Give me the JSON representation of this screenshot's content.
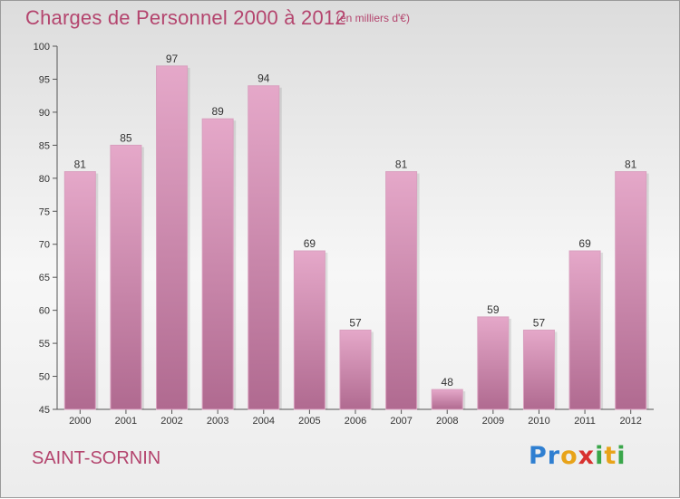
{
  "title": "Charges de Personnel 2000 à 2012",
  "subtitle": "(en milliers d'€)",
  "location": "SAINT-SORNIN",
  "logo": {
    "p1": "Pr",
    "p2": "o",
    "p3": "x",
    "p4": "i",
    "p5": "t",
    "p6": "i"
  },
  "colors": {
    "bar": "#c47aa0",
    "bar_light": "#e5a6c8",
    "bar_dark": "#a85a82",
    "title": "#b4456e"
  },
  "chart_data": {
    "type": "bar",
    "title": "Charges de Personnel 2000 à 2012",
    "subtitle": "(en milliers d'€)",
    "categories": [
      "2000",
      "2001",
      "2002",
      "2003",
      "2004",
      "2005",
      "2006",
      "2007",
      "2008",
      "2009",
      "2010",
      "2011",
      "2012"
    ],
    "values": [
      81,
      85,
      97,
      89,
      94,
      69,
      57,
      81,
      48,
      59,
      57,
      69,
      81
    ],
    "ylim": [
      45,
      100
    ],
    "yticks": [
      45,
      50,
      55,
      60,
      65,
      70,
      75,
      80,
      85,
      90,
      95,
      100
    ],
    "grid": false,
    "data_labels": true
  }
}
